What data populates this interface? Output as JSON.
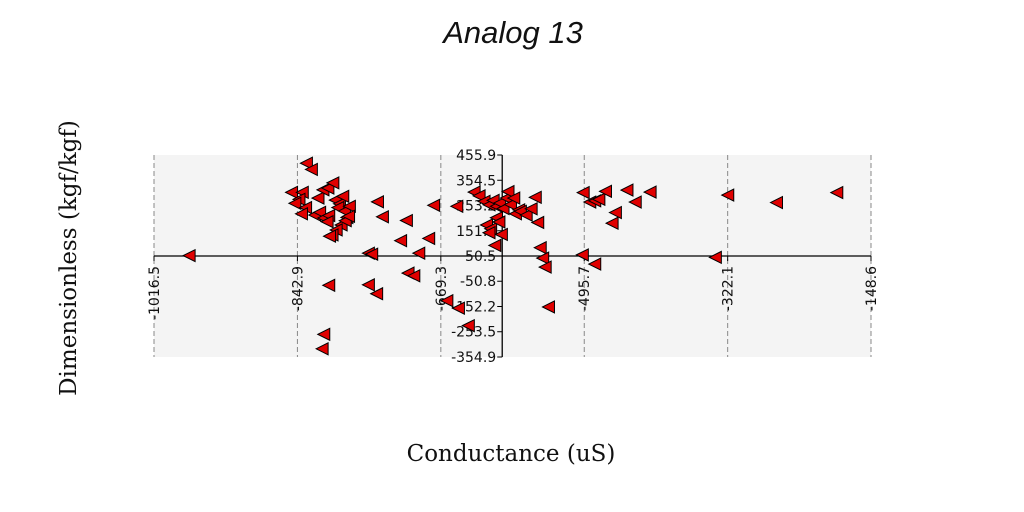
{
  "chart_data": {
    "type": "scatter",
    "title": "Analog 13",
    "xlabel": "Conductance (uS)",
    "ylabel": "Dimensionless (kgf/kgf)",
    "xlim": [
      -1016.5,
      -148.6
    ],
    "ylim": [
      -354.9,
      455.9
    ],
    "x_ticks": [
      "-1016.5",
      "-842.9",
      "-669.3",
      "-495.7",
      "-322.1",
      "-148.6"
    ],
    "y_ticks": [
      "455.9",
      "354.5",
      "253.2",
      "151.8",
      "50.5",
      "-50.8",
      "-152.2",
      "-253.5",
      "-354.9"
    ],
    "x_tick_values": [
      -1016.5,
      -842.9,
      -669.3,
      -495.7,
      -322.1,
      -148.6
    ],
    "y_tick_values": [
      455.9,
      354.5,
      253.2,
      151.8,
      50.5,
      -50.8,
      -152.2,
      -253.5,
      -354.9
    ],
    "grid": "vertical dashed",
    "marker": "left-pointing triangle",
    "marker_color": "#e00000",
    "series": [
      {
        "points": [
          [
            -974,
            52
          ],
          [
            -832,
            423
          ],
          [
            -826,
            398
          ],
          [
            -850,
            306
          ],
          [
            -837,
            306
          ],
          [
            -841,
            278
          ],
          [
            -846,
            262
          ],
          [
            -833,
            245
          ],
          [
            -838,
            220
          ],
          [
            -822,
            215
          ],
          [
            -816,
            226
          ],
          [
            -811,
            203
          ],
          [
            -805,
            213
          ],
          [
            -807,
            188
          ],
          [
            -818,
            283
          ],
          [
            -812,
            316
          ],
          [
            -806,
            323
          ],
          [
            -800,
            344
          ],
          [
            -797,
            275
          ],
          [
            -792,
            260
          ],
          [
            -788,
            290
          ],
          [
            -794,
            245
          ],
          [
            -786,
            231
          ],
          [
            -780,
            250
          ],
          [
            -783,
            205
          ],
          [
            -790,
            175
          ],
          [
            -796,
            155
          ],
          [
            -801,
            135
          ],
          [
            -785,
            192
          ],
          [
            -804,
            130
          ],
          [
            -781,
            210
          ],
          [
            -757,
            62
          ],
          [
            -753,
            58
          ],
          [
            -746,
            268
          ],
          [
            -740,
            208
          ],
          [
            -747,
            -101
          ],
          [
            -757,
            -65
          ],
          [
            -805,
            -67
          ],
          [
            -811,
            -264
          ],
          [
            -813,
            -322
          ],
          [
            -718,
            112
          ],
          [
            -711,
            193
          ],
          [
            -709,
            -18
          ],
          [
            -702,
            -29
          ],
          [
            -696,
            62
          ],
          [
            -684,
            121
          ],
          [
            -678,
            254
          ],
          [
            -662,
            -129
          ],
          [
            -648,
            -159
          ],
          [
            -650,
            250
          ],
          [
            -636,
            -229
          ],
          [
            -629,
            307
          ],
          [
            -623,
            292
          ],
          [
            -617,
            270
          ],
          [
            -611,
            256
          ],
          [
            -606,
            274
          ],
          [
            -602,
            250
          ],
          [
            -598,
            263
          ],
          [
            -594,
            241
          ],
          [
            -590,
            283
          ],
          [
            -585,
            257
          ],
          [
            -579,
            220
          ],
          [
            -575,
            236
          ],
          [
            -614,
            175
          ],
          [
            -609,
            160
          ],
          [
            -602,
            204
          ],
          [
            -599,
            187
          ],
          [
            -596,
            137
          ],
          [
            -611,
            144
          ],
          [
            -604,
            93
          ],
          [
            -588,
            309
          ],
          [
            -581,
            283
          ],
          [
            -573,
            230
          ],
          [
            -566,
            215
          ],
          [
            -560,
            240
          ],
          [
            -555,
            286
          ],
          [
            -552,
            185
          ],
          [
            -549,
            84
          ],
          [
            -546,
            42
          ],
          [
            -543,
            6
          ],
          [
            -539,
            -154
          ],
          [
            -497,
            305
          ],
          [
            -489,
            267
          ],
          [
            -483,
            272
          ],
          [
            -478,
            278
          ],
          [
            -470,
            310
          ],
          [
            -462,
            182
          ],
          [
            -458,
            225
          ],
          [
            -444,
            315
          ],
          [
            -434,
            267
          ],
          [
            -416,
            307
          ],
          [
            -498,
            55
          ],
          [
            -483,
            18
          ],
          [
            -322,
            295
          ],
          [
            -263,
            265
          ],
          [
            -190,
            305
          ],
          [
            -337,
            45
          ]
        ]
      }
    ]
  }
}
